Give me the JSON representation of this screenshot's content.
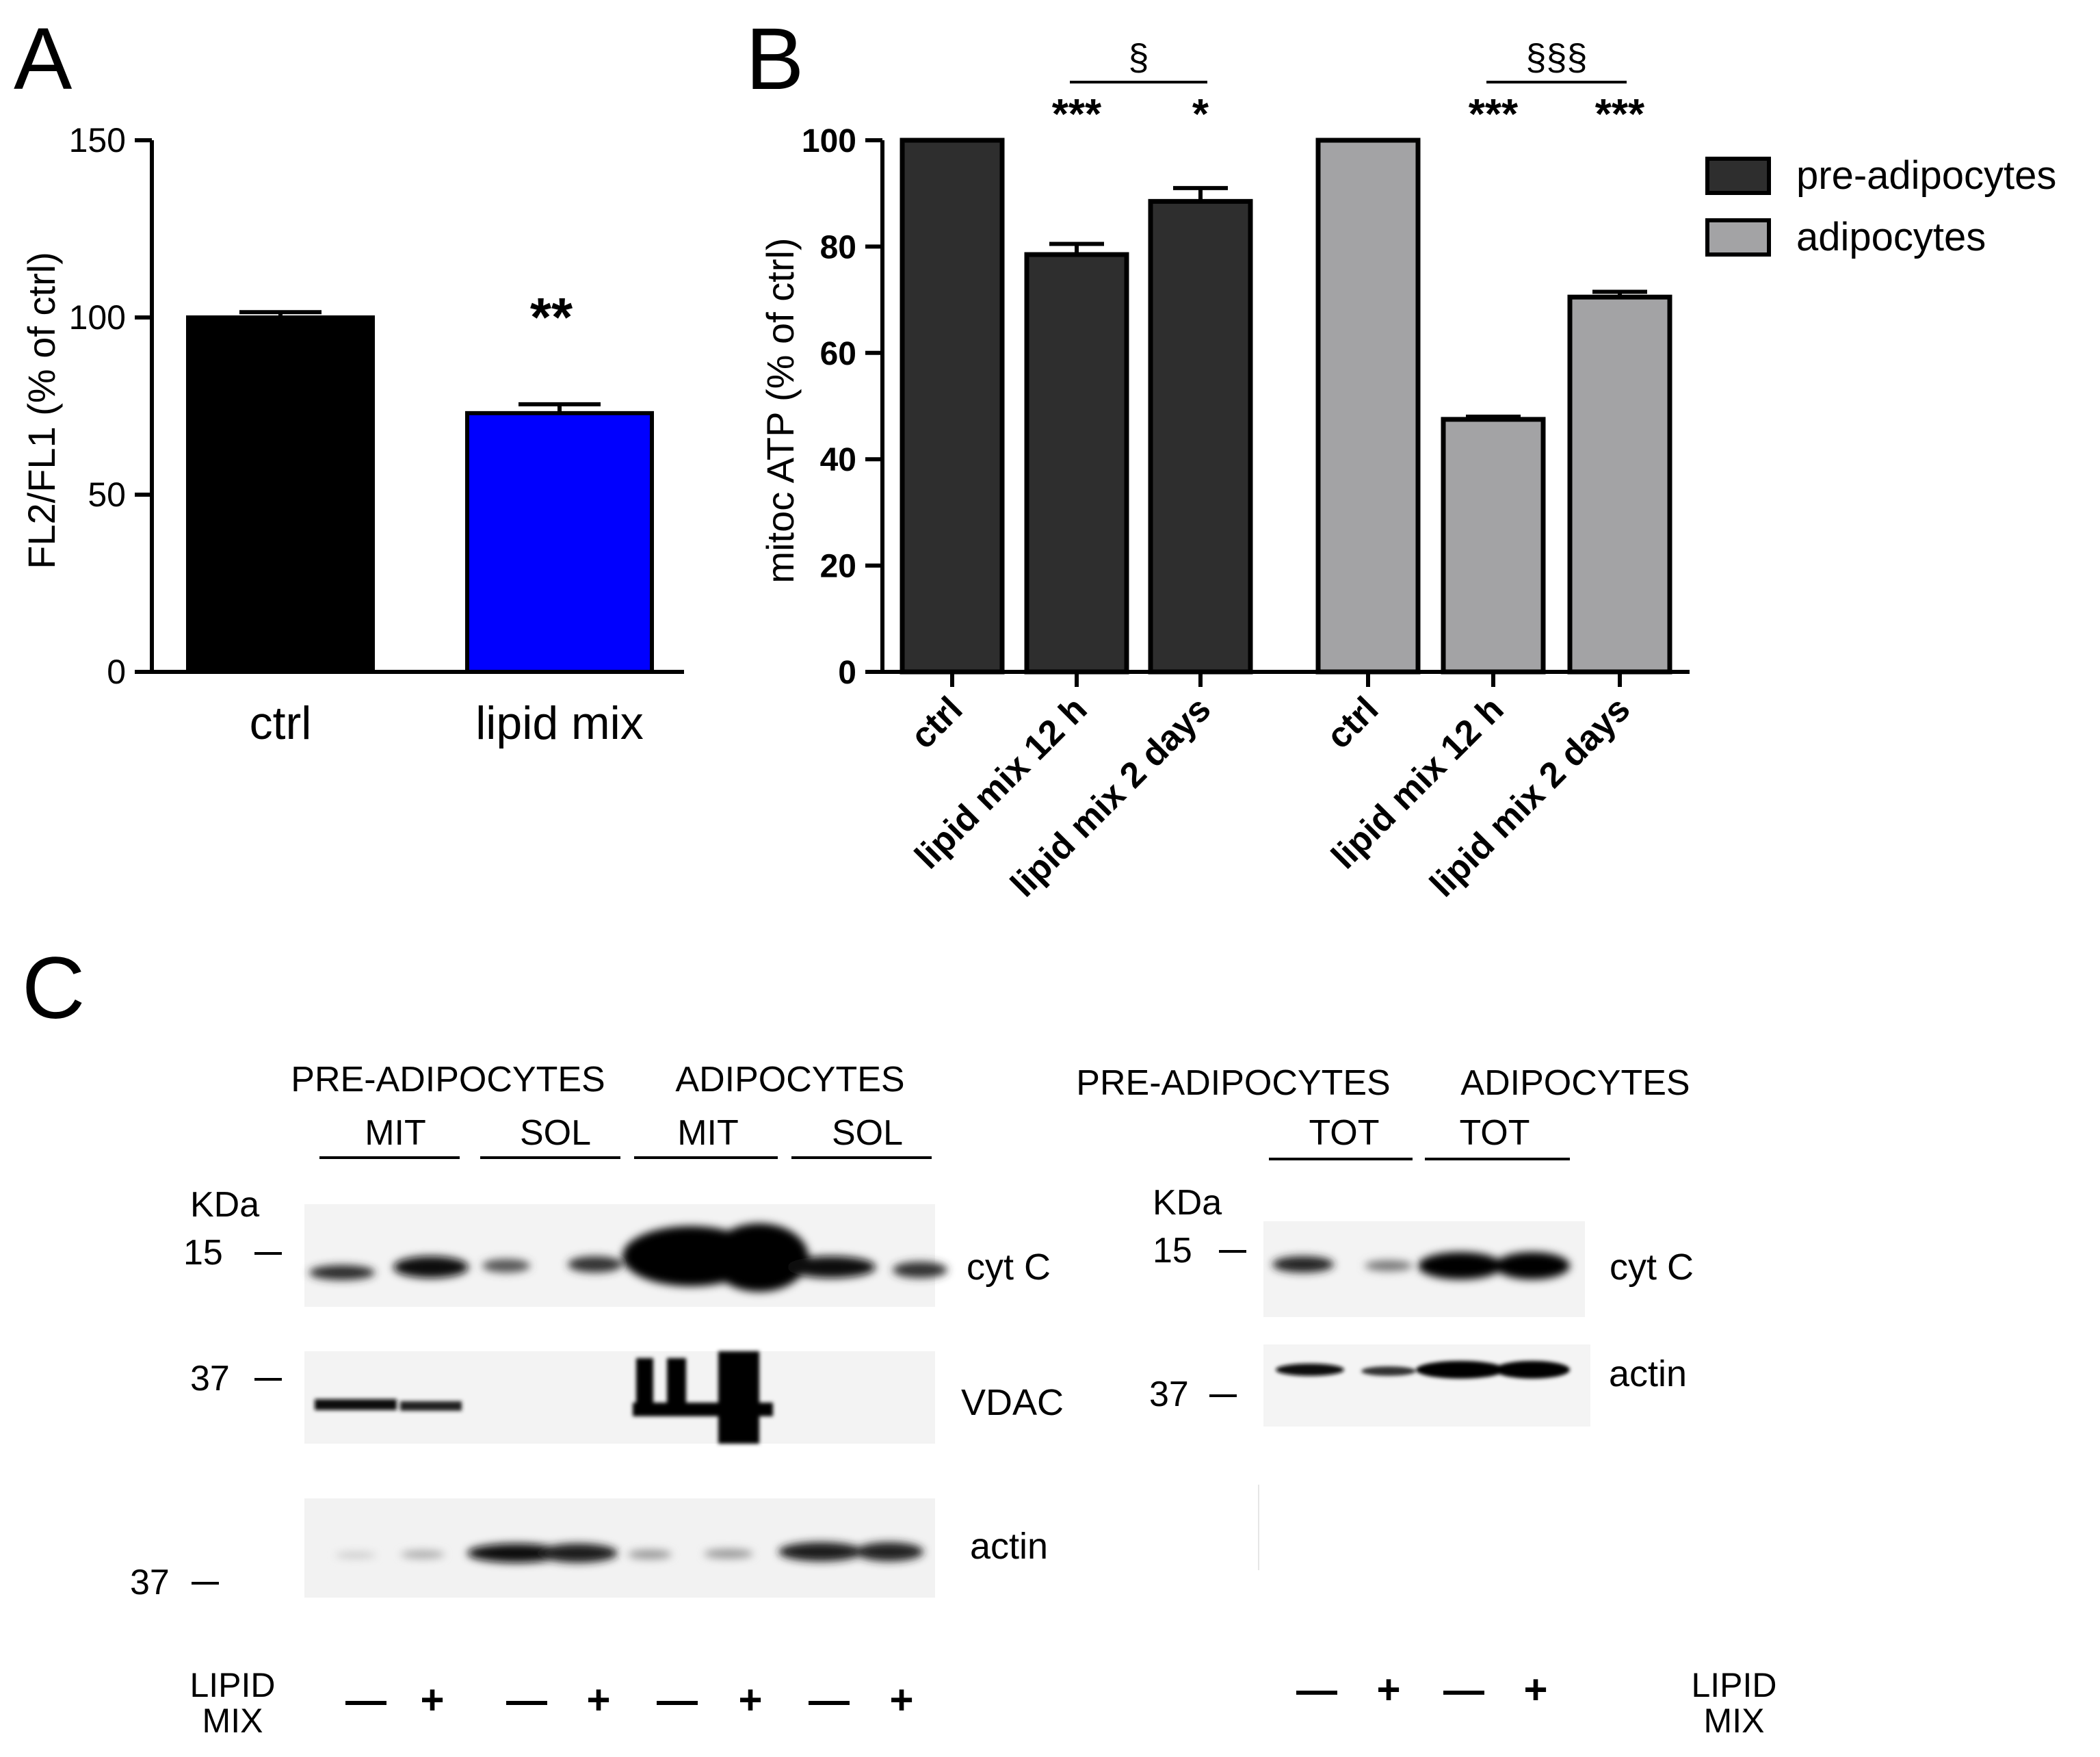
{
  "chart_data": [
    {
      "panel": "A",
      "type": "bar",
      "ylabel": "FL2/FL1 (% of ctrl)",
      "ylim": [
        0,
        150
      ],
      "yticks": [
        "0",
        "50",
        "100",
        "150"
      ],
      "categories": [
        "ctrl",
        "lipid mix"
      ],
      "values": [
        100,
        73
      ],
      "errors": [
        1.5,
        2.5
      ],
      "colors": [
        "#000000",
        "#0000ff"
      ],
      "annotations": [
        "",
        "**"
      ]
    },
    {
      "panel": "B",
      "type": "bar",
      "ylabel": "mitoc ATP (% of ctrl)",
      "ylim": [
        0,
        100
      ],
      "yticks": [
        "0",
        "20",
        "40",
        "60",
        "80",
        "100"
      ],
      "categories": [
        "ctrl",
        "lipid mix 12 h",
        "lipid mix 2 days"
      ],
      "series": [
        {
          "name": "pre-adipocytes",
          "color": "#2e2e2e",
          "values": [
            100,
            78.5,
            88.5
          ],
          "errors": [
            0,
            2,
            2.5
          ],
          "stars": [
            "",
            "***",
            "*"
          ],
          "bracket": "§"
        },
        {
          "name": "adipocytes",
          "color": "#a3a3a5",
          "values": [
            100,
            47.5,
            70.5
          ],
          "errors": [
            0,
            0.5,
            1
          ],
          "stars": [
            "",
            "***",
            "***"
          ],
          "bracket": "§§§"
        }
      ],
      "legend": "top-right"
    }
  ],
  "panels": {
    "a": "A",
    "b": "B",
    "c": "C"
  },
  "blot_left": {
    "header_groups": [
      "PRE-ADIPOCYTES",
      "ADIPOCYTES"
    ],
    "sub_headers": [
      "MIT",
      "SOL",
      "MIT",
      "SOL"
    ],
    "unit": "KDa",
    "markers": [
      "15",
      "37",
      "37"
    ],
    "labels": [
      "cyt C",
      "VDAC",
      "actin"
    ],
    "row_label": "LIPID MIX",
    "signs": [
      "—",
      "+",
      "—",
      "+",
      "—",
      "+",
      "—",
      "+"
    ]
  },
  "blot_right": {
    "header_groups": [
      "PRE-ADIPOCYTES",
      "ADIPOCYTES"
    ],
    "sub_headers": [
      "TOT",
      "TOT"
    ],
    "unit": "KDa",
    "markers": [
      "15",
      "37"
    ],
    "labels": [
      "cyt C",
      "actin"
    ],
    "row_label": "LIPID MIX",
    "signs": [
      "—",
      "+",
      "—",
      "+"
    ]
  }
}
